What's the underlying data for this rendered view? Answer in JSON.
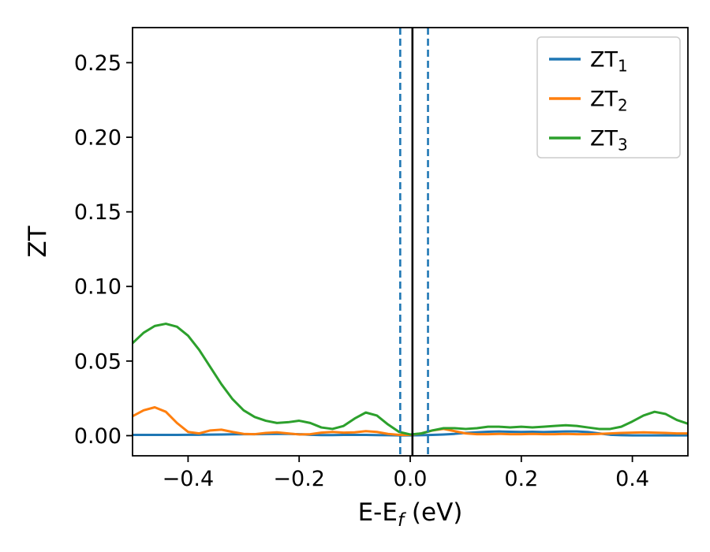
{
  "figure": {
    "background": "#ffffff"
  },
  "chart_data": {
    "type": "line",
    "title": "",
    "xlabel_main": "E-E",
    "xlabel_sub": "f",
    "xlabel_rest": " (eV)",
    "ylabel": "ZT",
    "xlim": [
      -0.5,
      0.5
    ],
    "ylim": [
      -0.0135,
      0.2735
    ],
    "grid": false,
    "xticks": [
      -0.4,
      -0.2,
      0.0,
      0.2,
      0.4
    ],
    "xtick_labels": [
      "−0.4",
      "−0.2",
      "0.0",
      "0.2",
      "0.4"
    ],
    "yticks": [
      0.0,
      0.05,
      0.1,
      0.15,
      0.2,
      0.25
    ],
    "ytick_labels": [
      "0.00",
      "0.05",
      "0.10",
      "0.15",
      "0.20",
      "0.25"
    ],
    "x": [
      -0.5,
      -0.48,
      -0.46,
      -0.44,
      -0.42,
      -0.4,
      -0.38,
      -0.36,
      -0.34,
      -0.32,
      -0.3,
      -0.28,
      -0.26,
      -0.24,
      -0.22,
      -0.2,
      -0.18,
      -0.16,
      -0.14,
      -0.12,
      -0.1,
      -0.08,
      -0.06,
      -0.04,
      -0.02,
      0.0,
      0.02,
      0.04,
      0.06,
      0.08,
      0.1,
      0.12,
      0.14,
      0.16,
      0.18,
      0.2,
      0.22,
      0.24,
      0.26,
      0.28,
      0.3,
      0.32,
      0.34,
      0.36,
      0.38,
      0.4,
      0.42,
      0.44,
      0.46,
      0.48,
      0.5
    ],
    "series": [
      {
        "name": "ZT1",
        "label_main": "ZT",
        "label_sub": "1",
        "color": "#1f77b4",
        "y": [
          0.0005,
          0.0005,
          0.0005,
          0.0005,
          0.0005,
          0.0006,
          0.0006,
          0.0007,
          0.0008,
          0.0009,
          0.001,
          0.001,
          0.0011,
          0.0012,
          0.0012,
          0.001,
          0.0006,
          0.0004,
          0.0004,
          0.0005,
          0.0005,
          0.0005,
          0.0004,
          0.0003,
          0.0002,
          0.0002,
          0.0003,
          0.0005,
          0.0008,
          0.0012,
          0.0018,
          0.0022,
          0.0026,
          0.0028,
          0.0026,
          0.0025,
          0.0026,
          0.0024,
          0.0026,
          0.0028,
          0.0028,
          0.0024,
          0.0015,
          0.0006,
          0.0003,
          0.0002,
          0.0002,
          0.0002,
          0.0002,
          0.0002,
          0.0002
        ]
      },
      {
        "name": "ZT2",
        "label_main": "ZT",
        "label_sub": "2",
        "color": "#ff7f0e",
        "y": [
          0.013,
          0.017,
          0.019,
          0.016,
          0.0085,
          0.0025,
          0.0015,
          0.0035,
          0.004,
          0.0025,
          0.0012,
          0.001,
          0.0018,
          0.0022,
          0.0015,
          0.0008,
          0.001,
          0.002,
          0.0025,
          0.002,
          0.0022,
          0.003,
          0.0025,
          0.0012,
          0.0005,
          0.0005,
          0.0015,
          0.0035,
          0.0045,
          0.003,
          0.0015,
          0.001,
          0.001,
          0.0012,
          0.001,
          0.001,
          0.0012,
          0.001,
          0.001,
          0.0012,
          0.001,
          0.001,
          0.0012,
          0.0015,
          0.0018,
          0.002,
          0.0022,
          0.002,
          0.0018,
          0.0015,
          0.0015
        ]
      },
      {
        "name": "ZT3",
        "label_main": "ZT",
        "label_sub": "3",
        "color": "#2ca02c",
        "y": [
          0.062,
          0.069,
          0.0735,
          0.075,
          0.073,
          0.067,
          0.0575,
          0.046,
          0.0345,
          0.0245,
          0.017,
          0.0125,
          0.01,
          0.0085,
          0.009,
          0.01,
          0.0085,
          0.0055,
          0.0045,
          0.0065,
          0.0115,
          0.0155,
          0.0135,
          0.0075,
          0.0025,
          0.0008,
          0.0015,
          0.0035,
          0.005,
          0.005,
          0.0045,
          0.005,
          0.006,
          0.006,
          0.0055,
          0.006,
          0.0055,
          0.006,
          0.0065,
          0.007,
          0.0065,
          0.0055,
          0.0045,
          0.0045,
          0.006,
          0.0095,
          0.0135,
          0.016,
          0.0145,
          0.0105,
          0.008
        ]
      }
    ],
    "vlines": [
      {
        "x": -0.018,
        "style": "dashed",
        "color": "#1f77b4"
      },
      {
        "x": 0.004,
        "style": "solid",
        "color": "#000000"
      },
      {
        "x": 0.032,
        "style": "dashed",
        "color": "#1f77b4"
      }
    ],
    "legend": {
      "position": "upper right"
    },
    "axis_color": "#000000"
  }
}
